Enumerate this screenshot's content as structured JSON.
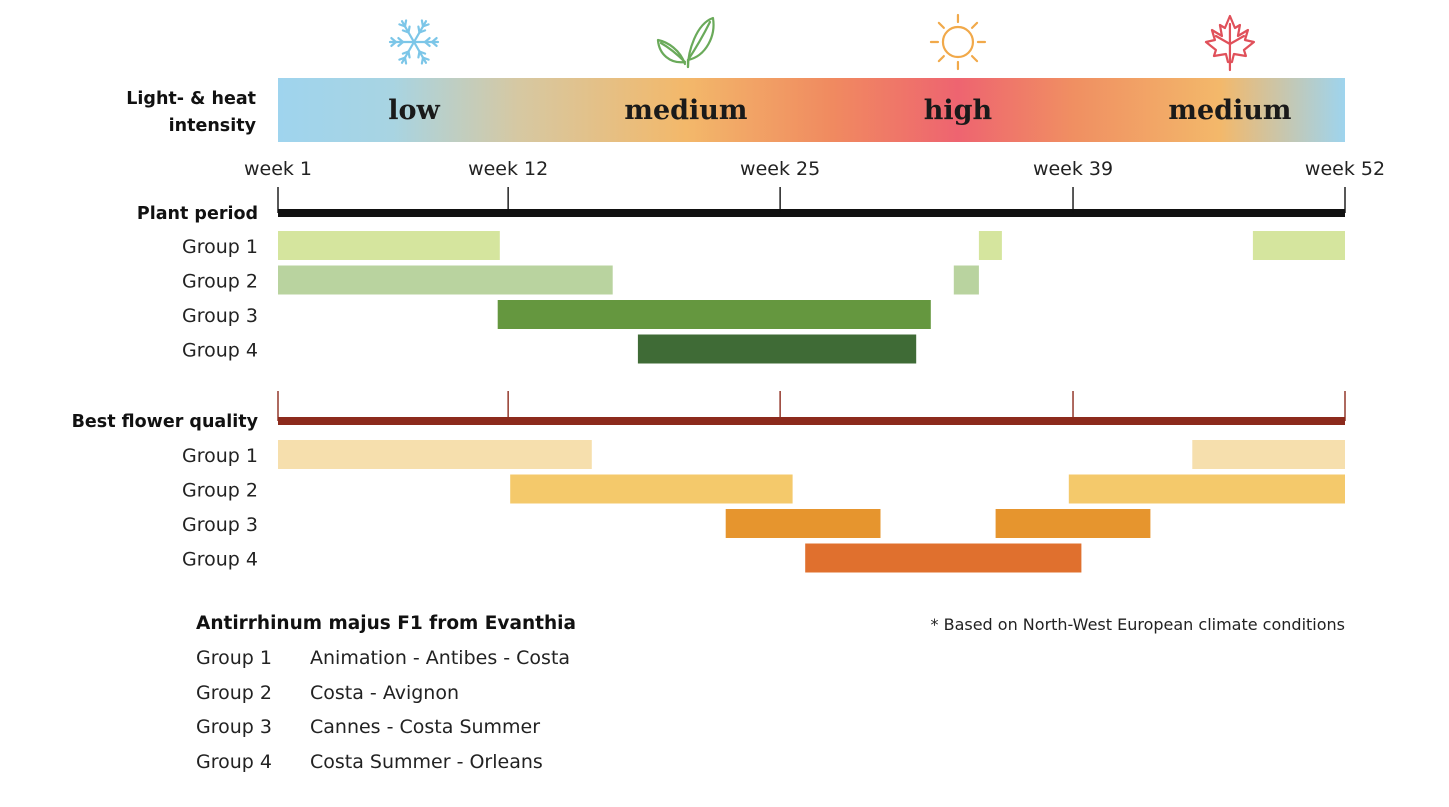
{
  "chart_data": {
    "type": "gantt",
    "x_axis": {
      "min_week": 1,
      "max_week": 52,
      "ticks": [
        1,
        12,
        25,
        39,
        52
      ],
      "tick_labels": [
        "week 1",
        "week 12",
        "week 25",
        "week 39",
        "week 52"
      ]
    },
    "intensity_band": {
      "label": "Light- & heat intensity",
      "label_lines": [
        "Light- & heat",
        "intensity"
      ],
      "segments": [
        {
          "text": "low",
          "week": 7.5,
          "icon": "snowflake-icon"
        },
        {
          "text": "medium",
          "week": 20.5,
          "icon": "leaf-icon"
        },
        {
          "text": "high",
          "week": 33.5,
          "icon": "sun-icon"
        },
        {
          "text": "medium",
          "week": 46.5,
          "icon": "maple-leaf-icon"
        }
      ],
      "gradient_stops": [
        {
          "week": 1,
          "color": "#9fd4ee"
        },
        {
          "week": 6.5,
          "color": "#a8d4e2"
        },
        {
          "week": 12.5,
          "color": "#d6c8a2"
        },
        {
          "week": 20.5,
          "color": "#f3b86a"
        },
        {
          "week": 27.5,
          "color": "#f08a60"
        },
        {
          "week": 33.5,
          "color": "#ee6470"
        },
        {
          "week": 39,
          "color": "#f08f62"
        },
        {
          "week": 46,
          "color": "#f3b86a"
        },
        {
          "week": 52,
          "color": "#9ed4ee"
        }
      ]
    },
    "sections": [
      {
        "title": "Plant period",
        "axis_color": "#111111",
        "groups": [
          {
            "label": "Group 1",
            "color": "#d5e59e",
            "ranges": [
              [
                1,
                11.6
              ],
              [
                34.5,
                35.6
              ],
              [
                47.6,
                53
              ]
            ]
          },
          {
            "label": "Group 2",
            "color": "#b9d39f",
            "ranges": [
              [
                1,
                17
              ],
              [
                33.3,
                34.5
              ]
            ]
          },
          {
            "label": "Group 3",
            "color": "#65973f",
            "ranges": [
              [
                11.5,
                32.2
              ]
            ]
          },
          {
            "label": "Group 4",
            "color": "#3f6b36",
            "ranges": [
              [
                18.2,
                31.5
              ]
            ]
          }
        ]
      },
      {
        "title": "Best flower quality",
        "axis_color": "#8c2a1c",
        "groups": [
          {
            "label": "Group 1",
            "color": "#f6dfad",
            "ranges": [
              [
                1,
                16
              ],
              [
                44.7,
                53
              ]
            ]
          },
          {
            "label": "Group 2",
            "color": "#f4c96b",
            "ranges": [
              [
                12.1,
                25.6
              ],
              [
                38.8,
                53
              ]
            ]
          },
          {
            "label": "Group 3",
            "color": "#e6952e",
            "ranges": [
              [
                22.4,
                29.8
              ],
              [
                35.3,
                42.7
              ]
            ]
          },
          {
            "label": "Group 4",
            "color": "#e0702e",
            "ranges": [
              [
                26.2,
                39.4
              ]
            ]
          }
        ]
      }
    ]
  },
  "legend": {
    "title": "Antirrhinum majus F1 from Evanthia",
    "rows": [
      {
        "group": "Group 1",
        "varieties": "Animation  -  Antibes  -  Costa"
      },
      {
        "group": "Group 2",
        "varieties": "Costa  -  Avignon"
      },
      {
        "group": "Group 3",
        "varieties": "Cannes  -  Costa Summer"
      },
      {
        "group": "Group 4",
        "varieties": "Costa Summer  -  Orleans"
      }
    ]
  },
  "footnote": "* Based on North-West European climate conditions",
  "colors": {
    "icon_snowflake": "#7cc6e8",
    "icon_leaf": "#6aaa5a",
    "icon_sun": "#f1a94a",
    "icon_maple": "#e0505a"
  }
}
